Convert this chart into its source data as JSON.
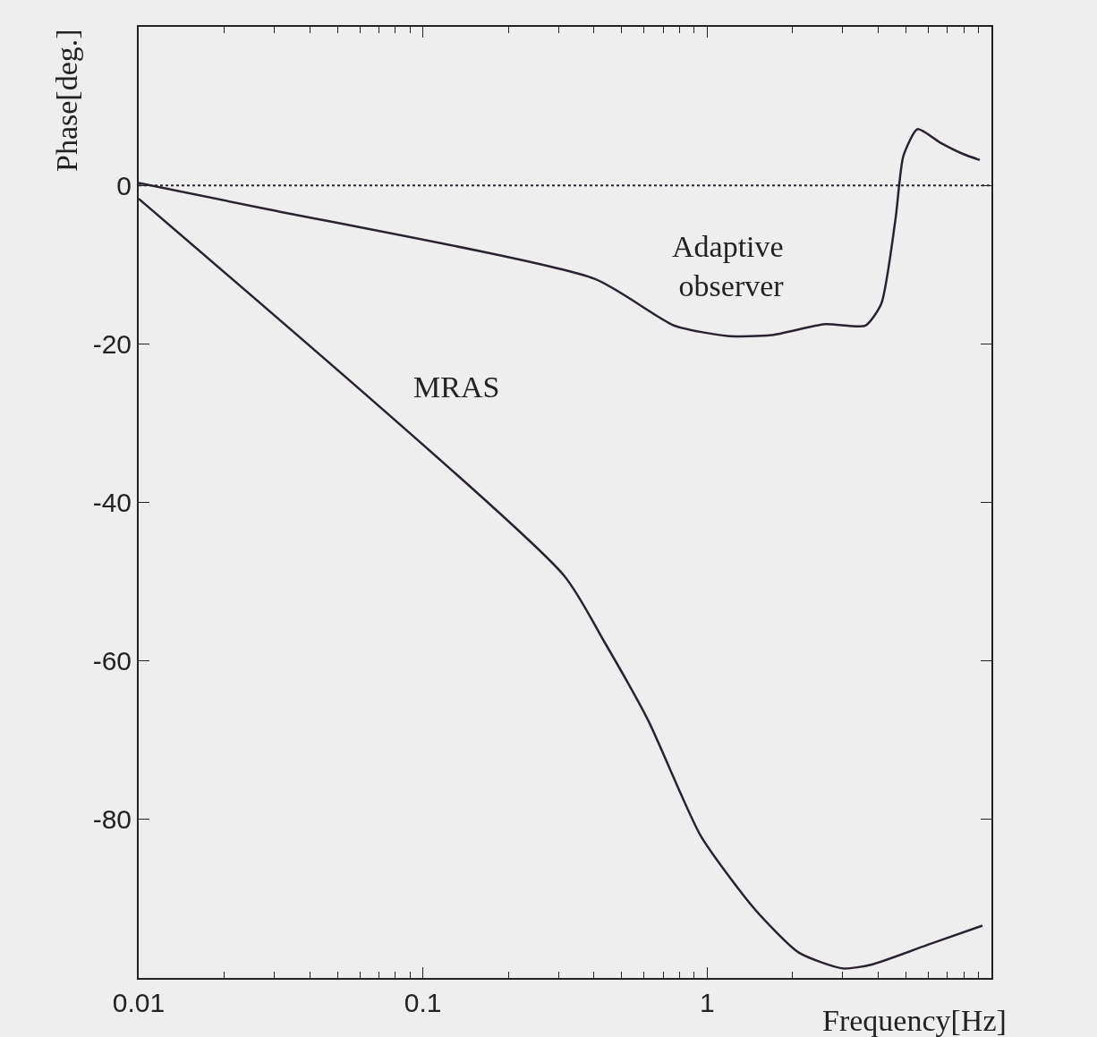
{
  "chart_data": {
    "type": "line",
    "xlabel": "Frequency[Hz]",
    "ylabel": "Phase[deg.]",
    "log": "x",
    "xlim": [
      0.01,
      10
    ],
    "ylim": [
      -100,
      20
    ],
    "xticks": [
      0.01,
      0.1,
      1
    ],
    "yticks": [
      0,
      -20,
      -40,
      -60,
      -80
    ],
    "grid": false,
    "legend": false,
    "line_style": "solid",
    "marker": "none",
    "series": [
      {
        "name": "Adaptive observer",
        "color": "#2a2230",
        "x": [
          0.01,
          0.0283,
          0.402,
          0.767,
          1.18,
          1.68,
          2.6,
          3.6,
          4.1,
          4.6,
          4.9,
          5.5,
          6.6,
          7.9,
          9.1
        ],
        "values": [
          0.3,
          -3,
          -11.8,
          -17.7,
          -19,
          -18.9,
          -17.5,
          -17.7,
          -14.9,
          -4.2,
          3.7,
          7.1,
          5.4,
          4,
          3.2
        ]
      },
      {
        "name": "MRAS",
        "color": "#2a2230",
        "x": [
          0.01,
          0.313,
          0.43,
          0.62,
          0.95,
          1.46,
          2.1,
          3.0,
          3.8,
          6.1,
          9.3
        ],
        "values": [
          -1.7,
          -49.2,
          -57.3,
          -67.5,
          -82.1,
          -91.2,
          -96.8,
          -98.8,
          -98.3,
          -95.7,
          -93.4
        ]
      }
    ],
    "ref_lines": [
      {
        "axis": "y",
        "value": 0,
        "color": "#2a2230",
        "line_style": "dotted"
      }
    ]
  }
}
